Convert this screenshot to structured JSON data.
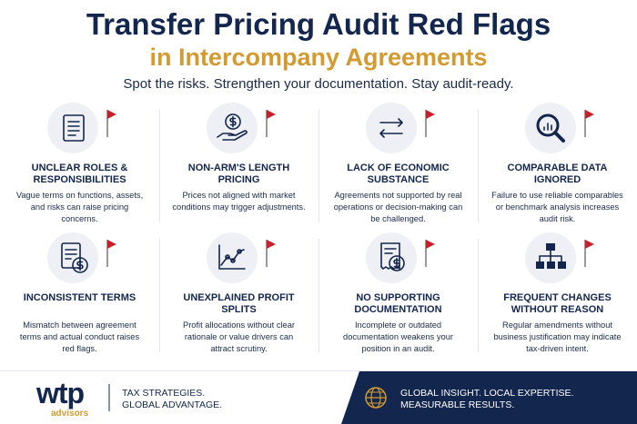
{
  "header": {
    "title": "Transfer Pricing Audit Red Flags",
    "title_line2": "in Intercompany Agreements",
    "subtitle": "Spot the risks. Strengthen your documentation. Stay audit-ready."
  },
  "items": [
    {
      "heading": "UNCLEAR ROLES & RESPONSIBILITIES",
      "description": "Vague terms on functions, assets, and risks can raise pricing concerns."
    },
    {
      "heading": "NON-ARM'S LENGTH PRICING",
      "description": "Prices not aligned with market conditions may trigger adjustments."
    },
    {
      "heading": "LACK OF ECONOMIC SUBSTANCE",
      "description": "Agreements not supported by real operations or decision-making can be challenged."
    },
    {
      "heading": "COMPARABLE DATA IGNORED",
      "description": "Failure to use reliable comparables or benchmark analysis increases audit risk."
    },
    {
      "heading": "INCONSISTENT TERMS",
      "description": "Mismatch between agreement terms and actual conduct raises red flags."
    },
    {
      "heading": "UNEXPLAINED PROFIT SPLITS",
      "description": "Profit allocations without clear rationale or value drivers can attract scrutiny."
    },
    {
      "heading": "NO SUPPORTING DOCUMENTATION",
      "description": "Incomplete or outdated documentation weakens your position in an audit."
    },
    {
      "heading": "FREQUENT CHANGES WITHOUT REASON",
      "description": "Regular amendments without business justification may indicate tax-driven intent."
    }
  ],
  "footer": {
    "logo": "wtp",
    "logo_sub": "advisors",
    "tagline_1": "TAX STRATEGIES.",
    "tagline_2": "GLOBAL ADVANTAGE.",
    "right_1": "GLOBAL INSIGHT. LOCAL EXPERTISE.",
    "right_2": "MEASURABLE RESULTS."
  }
}
